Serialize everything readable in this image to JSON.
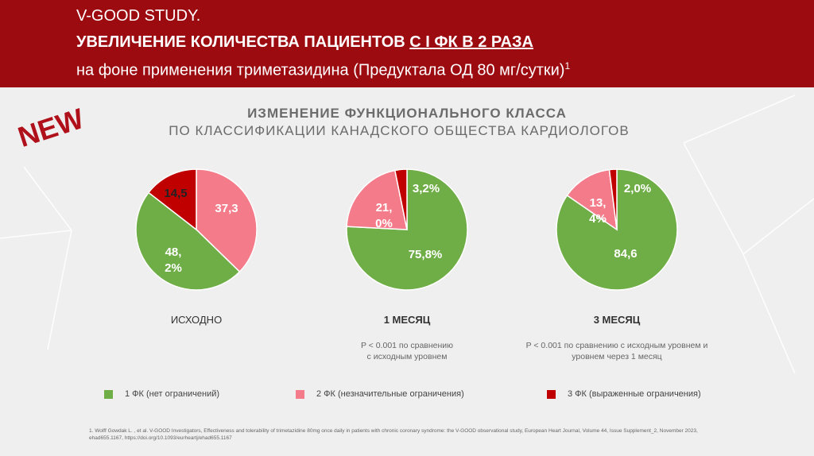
{
  "header": {
    "line1": "V-GOOD STUDY.",
    "line2": "УВЕЛИЧЕНИЕ КОЛИЧЕСТВА ПАЦИЕНТОВ",
    "line2_underlined": "С I ФК В 2 РАЗА",
    "line3": "на фоне применения триметазидина (Предуктала ОД 80 мг/сутки)",
    "line3_sup": "1"
  },
  "badge": "NEW",
  "subtitle": {
    "line1": "ИЗМЕНЕНИЕ ФУНКЦИОНАЛЬНОГО КЛАССА",
    "line2": "ПО КЛАССИФИКАЦИИ КАНАДСКОГО ОБЩЕСТВА КАРДИОЛОГОВ"
  },
  "chart_data": [
    {
      "type": "pie",
      "title": "ИСХОДНО",
      "values": [
        48.2,
        37.3,
        14.5
      ],
      "value_labels": [
        "48,\n2%",
        "37,3",
        "14,5"
      ],
      "colors": [
        "#6fae47",
        "#f47c8a",
        "#c00000"
      ]
    },
    {
      "type": "pie",
      "title": "1 МЕСЯЦ",
      "note": "P < 0.001 по сравнению\nс исходным уровнем",
      "values": [
        75.8,
        21.0,
        3.2
      ],
      "value_labels": [
        "75,8%",
        "21,\n0%",
        "3,2%"
      ],
      "colors": [
        "#6fae47",
        "#f47c8a",
        "#c00000"
      ]
    },
    {
      "type": "pie",
      "title": "3 МЕСЯЦ",
      "note": "P < 0.001 по сравнению с исходным уровнем и\nуровнем через 1 месяц",
      "values": [
        84.6,
        13.4,
        2.0
      ],
      "value_labels": [
        "84,6",
        "13,\n4%",
        "2,0%"
      ],
      "colors": [
        "#6fae47",
        "#f47c8a",
        "#c00000"
      ]
    }
  ],
  "legend": [
    "1 ФК (нет ограничений)",
    "2 ФК (незначительные ограничения)",
    "3 ФК (выраженные ограничения)"
  ],
  "footnote": "1. Wolff Gowdak L. , et al.  V-GOOD Investigators, Effectiveness and tolerability of trimetazidine 80mg once daily in patients with chronic coronary syndrome: the V-GOOD observational study, European Heart Journal, Volume 44, Issue Supplement_2, November 2023, ehad655.1167, https://doi.org/10.1093/eurheartj/ehad655.1167"
}
